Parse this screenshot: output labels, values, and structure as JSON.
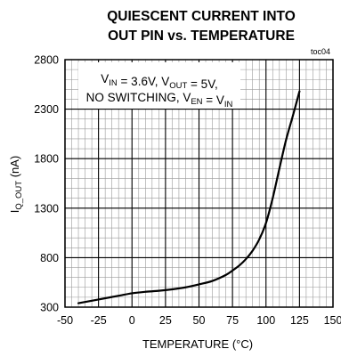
{
  "chart_data": {
    "type": "line",
    "title_lines": [
      "QUIESCENT CURRENT INTO",
      "OUT PIN vs. TEMPERATURE"
    ],
    "note": "toc04",
    "xlabel": "TEMPERATURE (°C)",
    "ylabel": {
      "main": "I",
      "sub": "Q_OUT",
      "unit": " (nA)"
    },
    "xlim": [
      -50,
      150
    ],
    "ylim": [
      300,
      2800
    ],
    "x_ticks": [
      -50,
      -25,
      0,
      25,
      50,
      75,
      100,
      125,
      150
    ],
    "y_ticks": [
      300,
      800,
      1300,
      1800,
      2300,
      2800
    ],
    "x_minor_step": 5,
    "y_minor_step": 100,
    "grid": true,
    "annotation": {
      "line1": [
        {
          "text": "V",
          "sub": "IN"
        },
        {
          "text": " = 3.6V, V",
          "sub": "OUT"
        },
        {
          "text": " = 5V,",
          "sub": ""
        }
      ],
      "line2": [
        {
          "text": "NO SWITCHING, V",
          "sub": "EN"
        },
        {
          "text": " = V",
          "sub": "IN"
        }
      ]
    },
    "series": [
      {
        "x": [
          -40,
          -30,
          -20,
          -10,
          0,
          10,
          20,
          30,
          40,
          50,
          60,
          70,
          75,
          80,
          85,
          90,
          95,
          100,
          105,
          110,
          115,
          120,
          125
        ],
        "y": [
          340,
          365,
          390,
          415,
          440,
          455,
          465,
          480,
          500,
          530,
          565,
          625,
          670,
          720,
          785,
          870,
          985,
          1150,
          1400,
          1700,
          1990,
          2230,
          2480
        ]
      }
    ]
  }
}
